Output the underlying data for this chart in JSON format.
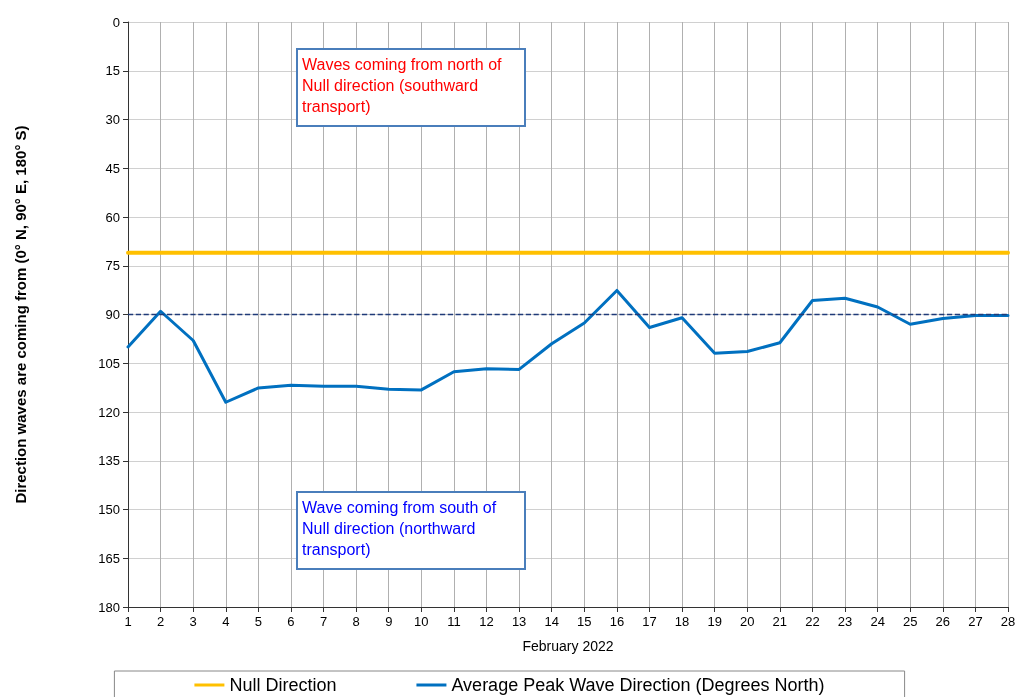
{
  "chart_data": {
    "type": "line",
    "xlabel": "February 2022",
    "ylabel": "Direction waves are coming from (0° N, 90° E, 180° S)",
    "x": [
      1,
      2,
      3,
      4,
      5,
      6,
      7,
      8,
      9,
      10,
      11,
      12,
      13,
      14,
      15,
      16,
      17,
      18,
      19,
      20,
      21,
      22,
      23,
      24,
      25,
      26,
      27,
      28
    ],
    "series": [
      {
        "name": "Null Direction",
        "color": "#ffc000",
        "values": [
          71,
          71,
          71,
          71,
          71,
          71,
          71,
          71,
          71,
          71,
          71,
          71,
          71,
          71,
          71,
          71,
          71,
          71,
          71,
          71,
          71,
          71,
          71,
          71,
          71,
          71,
          71,
          71
        ]
      },
      {
        "name": "Average Peak Wave Direction (Degrees North)",
        "color": "#0070c0",
        "values": [
          100,
          89,
          98,
          117,
          112.6,
          111.8,
          112.1,
          112.1,
          113,
          113.2,
          107.6,
          106.7,
          106.9,
          99,
          92.6,
          82.6,
          94,
          91,
          101.9,
          101.4,
          98.7,
          85.7,
          85,
          87.7,
          93,
          91.2,
          90.3,
          90.3
        ]
      }
    ],
    "ref_lines": [
      {
        "axis": "y",
        "value": 90,
        "color": "#1f3a78",
        "line_style": "dashed"
      }
    ],
    "annotations": [
      "Waves coming from north of Null direction (southward transport)",
      "Wave coming from south of Null direction (northward transport)"
    ],
    "xlim": [
      1,
      28
    ],
    "xticks": [
      1,
      2,
      3,
      4,
      5,
      6,
      7,
      8,
      9,
      10,
      11,
      12,
      13,
      14,
      15,
      16,
      17,
      18,
      19,
      20,
      21,
      22,
      23,
      24,
      25,
      26,
      27,
      28
    ],
    "ylim": [
      180,
      0
    ],
    "yticks": [
      0,
      15,
      30,
      45,
      60,
      75,
      90,
      105,
      120,
      135,
      150,
      165,
      180
    ],
    "grid": true,
    "legend": "bottom",
    "marker": "none",
    "line_style": "solid"
  }
}
